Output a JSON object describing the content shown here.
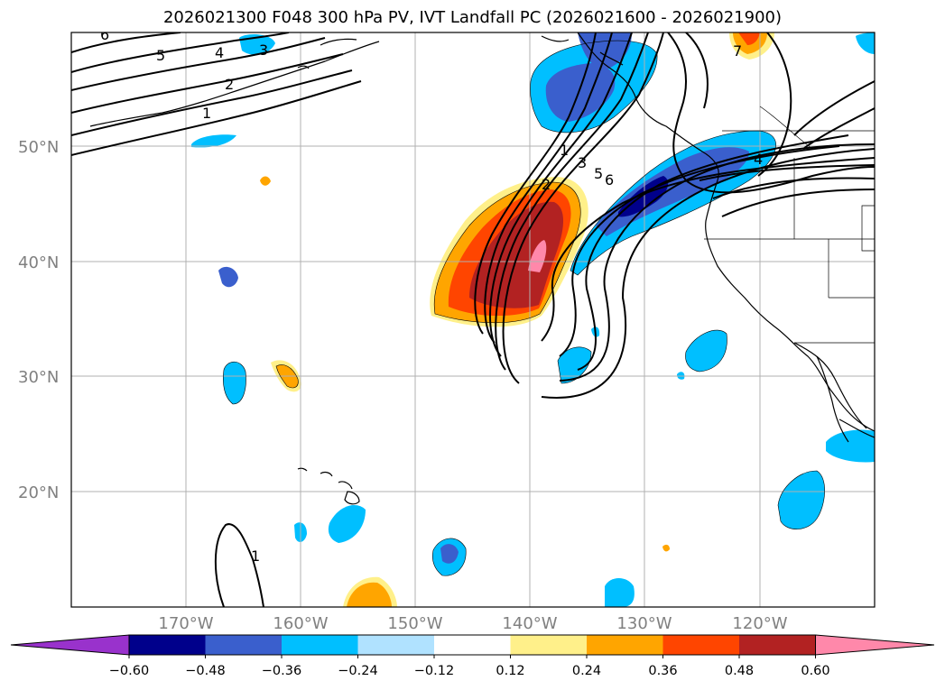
{
  "title": "2026021300 F048 300 hPa PV, IVT Landfall PC (2026021600 - 2026021900)",
  "lat_labels": [
    "50°N",
    "40°N",
    "30°N",
    "20°N"
  ],
  "lon_labels": [
    "170°W",
    "160°W",
    "150°W",
    "140°W",
    "130°W",
    "120°W"
  ],
  "colorbar": {
    "ticks": [
      "−0.60",
      "−0.48",
      "−0.36",
      "−0.24",
      "−0.12",
      "0.12",
      "0.24",
      "0.36",
      "0.48",
      "0.60"
    ],
    "colors": [
      "#9932cc",
      "#00008b",
      "#3a5fcd",
      "#00bfff",
      "#b0e2ff",
      "#ffffff",
      "#fff08a",
      "#ffa500",
      "#ff4500",
      "#b22222",
      "#ff88aa"
    ]
  },
  "contour_labels": {
    "nw_6": "6",
    "nw_5": "5",
    "nw_4": "4",
    "nw_3": "3",
    "nw_2": "2",
    "nw_1": "1",
    "trough_1": "1",
    "trough_2": "2",
    "trough_3": "3",
    "trough_5": "5",
    "trough_6": "6",
    "ne_7": "7",
    "ne_4": "4",
    "sw_1": "1"
  }
}
